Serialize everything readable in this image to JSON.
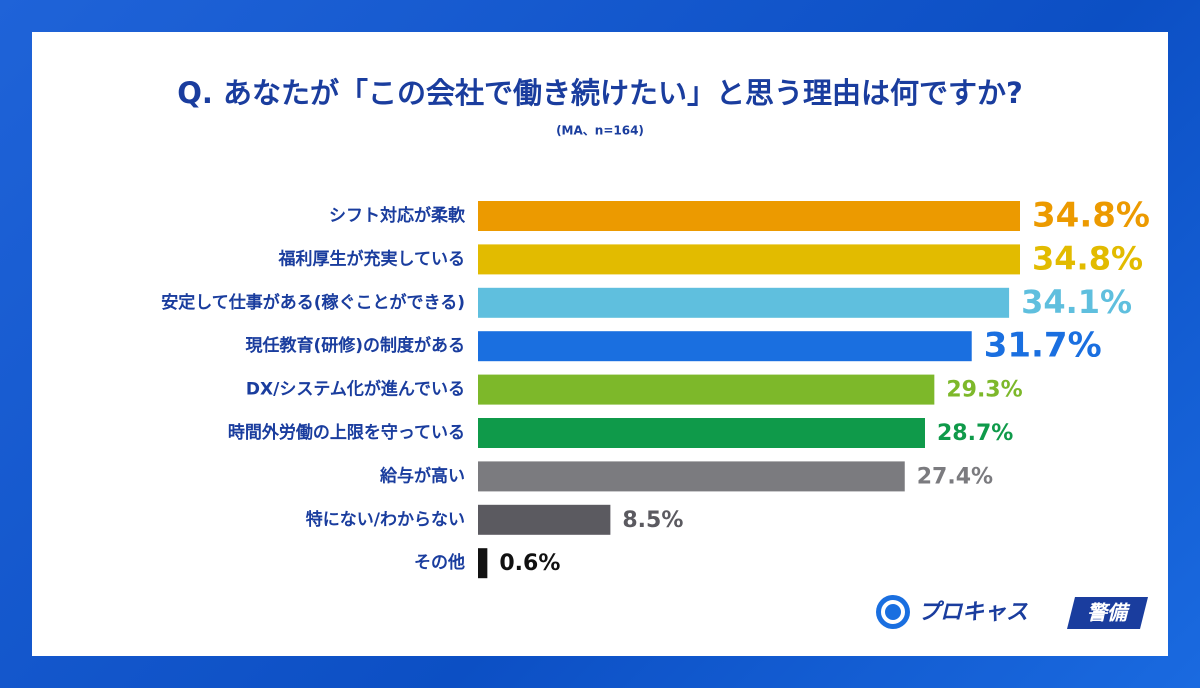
{
  "chart_data": {
    "type": "bar",
    "orientation": "horizontal",
    "title": "Q. あなたが「この会社で働き続けたい」と思う理由は何ですか?",
    "subtitle": "(MA、n=164)",
    "categories": [
      "シフト対応が柔軟",
      "福利厚生が充実している",
      "安定して仕事がある(稼ぐことができる)",
      "現任教育(研修)の制度がある",
      "DX/システム化が進んでいる",
      "時間外労働の上限を守っている",
      "給与が高い",
      "特にない/わからない",
      "その他"
    ],
    "values": [
      34.8,
      34.8,
      34.1,
      31.7,
      29.3,
      28.7,
      27.4,
      8.5,
      0.6
    ],
    "value_labels": [
      "34.8%",
      "34.8%",
      "34.1%",
      "31.7%",
      "29.3%",
      "28.7%",
      "27.4%",
      "8.5%",
      "0.6%"
    ],
    "colors": [
      "#ec9a00",
      "#e2bb00",
      "#5fbfde",
      "#1a6fe0",
      "#7db82a",
      "#0f9a4a",
      "#7b7b7f",
      "#5b5a60",
      "#111111"
    ]
  },
  "logo": {
    "name": "プロキャス",
    "badge": "警備"
  }
}
